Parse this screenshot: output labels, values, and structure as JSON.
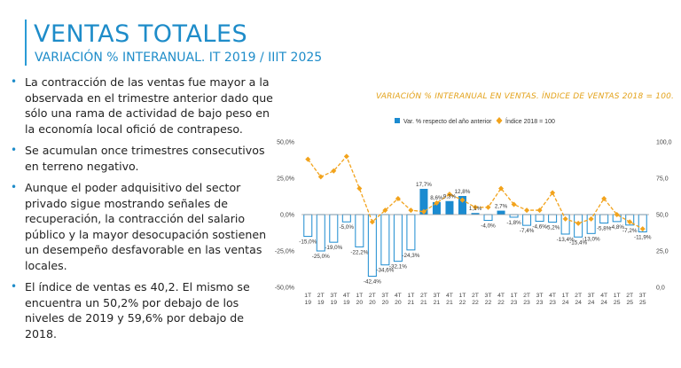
{
  "slide": {
    "title": "VENTAS TOTALES",
    "subtitle": "VARIACIÓN % INTERANUAL. IT 2019 / IIIT 2025",
    "accent_color": "#1e8cc9",
    "bullets": [
      "La contracción de las ventas fue mayor a la observada en el trimestre anterior dado que sólo una rama de actividad de bajo peso en la economía local ofició de contrapeso.",
      "Se acumulan once trimestres consecutivos en terreno negativo.",
      "Aunque el poder adquisitivo del sector privado sigue mostrando señales de recuperación, la contracción del salario público y la mayor desocupación sostienen un desempeño desfavorable en las ventas locales.",
      "El índice de ventas es 40,2. El mismo se encuentra un 50,2% por debajo de los niveles de 2019 y 59,6% por debajo de 2018."
    ],
    "bullet_glyph": "•"
  },
  "chart_data": {
    "type": "bar+line",
    "title": "VARIACIÓN % INTERANUAL EN VENTAS. ÍNDICE DE VENTAS 2018 = 100.",
    "categories": [
      [
        "1T",
        "19"
      ],
      [
        "2T",
        "19"
      ],
      [
        "3T",
        "19"
      ],
      [
        "4T",
        "19"
      ],
      [
        "1T",
        "20"
      ],
      [
        "2T",
        "20"
      ],
      [
        "3T",
        "20"
      ],
      [
        "4T",
        "20"
      ],
      [
        "1T",
        "21"
      ],
      [
        "2T",
        "21"
      ],
      [
        "3T",
        "21"
      ],
      [
        "4T",
        "21"
      ],
      [
        "1T",
        "22"
      ],
      [
        "2T",
        "22"
      ],
      [
        "3T",
        "22"
      ],
      [
        "4T",
        "22"
      ],
      [
        "1T",
        "23"
      ],
      [
        "2T",
        "23"
      ],
      [
        "3T",
        "23"
      ],
      [
        "4T",
        "23"
      ],
      [
        "1T",
        "24"
      ],
      [
        "2T",
        "24"
      ],
      [
        "3T",
        "24"
      ],
      [
        "4T",
        "24"
      ],
      [
        "1T",
        "25"
      ],
      [
        "2T",
        "25"
      ],
      [
        "3T",
        "25"
      ]
    ],
    "series": [
      {
        "name": "Var. % respecto del año anterior",
        "type": "bar",
        "axis": "left",
        "color": "#1b8bd0",
        "values": [
          -15.0,
          -25.0,
          -19.0,
          -5.0,
          -22.2,
          -42.4,
          -34.6,
          -32.1,
          -24.3,
          17.7,
          8.6,
          9.3,
          12.8,
          1.1,
          -4.0,
          2.7,
          -1.8,
          -7.4,
          -4.6,
          -5.2,
          -13.4,
          -15.4,
          -13.0,
          -5.8,
          -4.8,
          -7.2,
          -11.9
        ],
        "labels": [
          "-15,0%",
          "-25,0%",
          "-19,0%",
          "-5,0%",
          "-22,2%",
          "-42,4%",
          "-34,6%",
          "-32,1%",
          "-24,3%",
          "17,7%",
          "8,6%",
          "9,3%",
          "12,8%",
          "1,1%",
          "-4,0%",
          "2,7%",
          "-1,8%",
          "-7,4%",
          "-4,6%",
          "-5,2%",
          "-13,4%",
          "-15,4%",
          "-13,0%",
          "-5,8%",
          "-4,8%",
          "-7,2%",
          "-11,9%"
        ],
        "label_shown": [
          true,
          true,
          true,
          true,
          true,
          true,
          true,
          true,
          true,
          true,
          true,
          true,
          true,
          true,
          true,
          true,
          true,
          true,
          true,
          true,
          true,
          true,
          true,
          true,
          true,
          true,
          true
        ]
      },
      {
        "name": "Índice 2018 = 100",
        "type": "line",
        "axis": "right",
        "color": "#f2a31c",
        "values": [
          88.0,
          76.0,
          80.0,
          90.0,
          68.0,
          45.0,
          53.0,
          61.0,
          53.0,
          52.0,
          58.0,
          64.0,
          60.0,
          55.0,
          55.0,
          68.0,
          57.0,
          53.0,
          53.0,
          65.0,
          47.0,
          44.0,
          47.0,
          61.0,
          50.0,
          45.0,
          40.2
        ]
      }
    ],
    "ylim_left": [
      -50,
      50
    ],
    "yticks_left": [
      "50,0%",
      "25,0%",
      "0,0%",
      "-25,0%",
      "-50,0%"
    ],
    "ylim_right": [
      0,
      100
    ],
    "yticks_right": [
      "100,0",
      "75,0",
      "50,0",
      "25,0",
      "0,0"
    ],
    "legend": [
      "Var. % respecto del año anterior",
      "Índice 2018 = 100"
    ],
    "legend_position": "top",
    "grid": false
  }
}
